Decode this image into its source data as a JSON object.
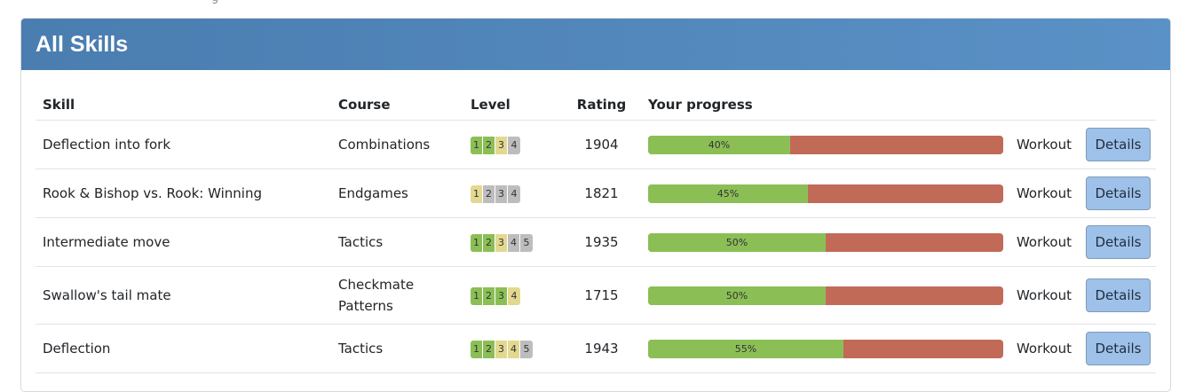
{
  "top_fragment": "g",
  "panel": {
    "title": "All Skills"
  },
  "table": {
    "headers": [
      "Skill",
      "Course",
      "Level",
      "Rating",
      "Your progress"
    ],
    "rows": [
      {
        "skill": "Deflection into fork",
        "course": "Combinations",
        "levels": [
          {
            "n": "1",
            "state": "green"
          },
          {
            "n": "2",
            "state": "green"
          },
          {
            "n": "3",
            "state": "yellow"
          },
          {
            "n": "4",
            "state": "gray"
          }
        ],
        "rating": "1904",
        "progress_label": "40%",
        "progress_fraction": 0.4,
        "workout": "Workout",
        "details": "Details"
      },
      {
        "skill": "Rook & Bishop vs. Rook: Winning",
        "course": "Endgames",
        "levels": [
          {
            "n": "1",
            "state": "yellow"
          },
          {
            "n": "2",
            "state": "gray"
          },
          {
            "n": "3",
            "state": "gray"
          },
          {
            "n": "4",
            "state": "gray"
          }
        ],
        "rating": "1821",
        "progress_label": "45%",
        "progress_fraction": 0.45,
        "workout": "Workout",
        "details": "Details"
      },
      {
        "skill": "Intermediate move",
        "course": "Tactics",
        "levels": [
          {
            "n": "1",
            "state": "green"
          },
          {
            "n": "2",
            "state": "green"
          },
          {
            "n": "3",
            "state": "yellow"
          },
          {
            "n": "4",
            "state": "gray"
          },
          {
            "n": "5",
            "state": "gray"
          }
        ],
        "rating": "1935",
        "progress_label": "50%",
        "progress_fraction": 0.5,
        "workout": "Workout",
        "details": "Details"
      },
      {
        "skill": "Swallow's tail mate",
        "course": "Checkmate Patterns",
        "levels": [
          {
            "n": "1",
            "state": "green"
          },
          {
            "n": "2",
            "state": "green"
          },
          {
            "n": "3",
            "state": "green"
          },
          {
            "n": "4",
            "state": "yellow"
          }
        ],
        "rating": "1715",
        "progress_label": "50%",
        "progress_fraction": 0.5,
        "workout": "Workout",
        "details": "Details"
      },
      {
        "skill": "Deflection",
        "course": "Tactics",
        "levels": [
          {
            "n": "1",
            "state": "green"
          },
          {
            "n": "2",
            "state": "green"
          },
          {
            "n": "3",
            "state": "yellow"
          },
          {
            "n": "4",
            "state": "yellow"
          },
          {
            "n": "5",
            "state": "gray"
          }
        ],
        "rating": "1943",
        "progress_label": "55%",
        "progress_fraction": 0.55,
        "workout": "Workout",
        "details": "Details"
      }
    ]
  },
  "colors": {
    "header_gradient_start": "#4a7db0",
    "header_gradient_end": "#5a91c6",
    "progress_done": "#8bbf56",
    "progress_remaining": "#c26a58",
    "level_complete": "#8bbf56",
    "level_current": "#e3d890",
    "level_locked": "#bdbdbd",
    "details_button": "#9ec1ea"
  }
}
